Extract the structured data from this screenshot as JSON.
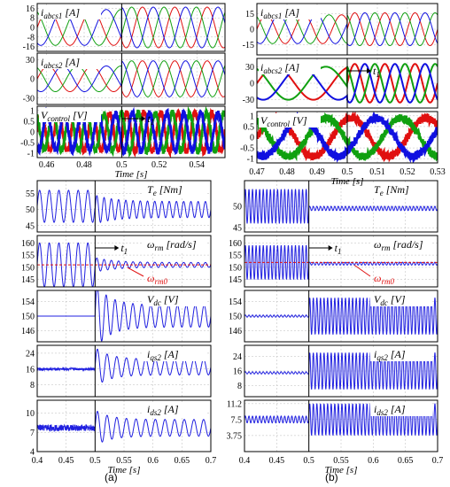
{
  "figure": {
    "caption_a": "(a)",
    "caption_b": "(b)"
  },
  "colors": {
    "red": "#e01010",
    "green": "#10a010",
    "blue": "#1010e0",
    "trace": "#2020e0",
    "annot": "#e01010"
  },
  "chart_data": [
    {
      "id": "a-top",
      "type": "line",
      "xlabel": "Time [s]",
      "xlim": [
        0.455,
        0.555
      ],
      "xticks": [
        "0.46",
        "0.48",
        "0.5",
        "0.52",
        "0.54"
      ],
      "event_x": 0.5,
      "panels": [
        {
          "label": "i_abcs1 [A]",
          "ylim": [
            -20,
            20
          ],
          "yticks": [
            "16",
            "8",
            "0",
            "-8",
            "-16"
          ],
          "series": [
            {
              "color": "red",
              "kind": "sine3",
              "amp": 15,
              "freq": 43,
              "phase": 0,
              "amp2": 17,
              "freq2": 58
            },
            {
              "color": "green",
              "kind": "sine3",
              "amp": 15,
              "freq": 43,
              "phase": 2.094,
              "amp2": 17,
              "freq2": 58
            },
            {
              "color": "blue",
              "kind": "sine3",
              "amp": 15,
              "freq": 43,
              "phase": 4.189,
              "amp2": 17,
              "freq2": 58
            }
          ]
        },
        {
          "label": "i_abcs2 [A]",
          "ylim": [
            -40,
            40
          ],
          "yticks": [
            "30",
            "0",
            "-30"
          ],
          "series": [
            {
              "color": "red",
              "kind": "sine3",
              "amp": 20,
              "freq": 43,
              "phase": 0,
              "amp2": 28,
              "freq2": 58
            },
            {
              "color": "green",
              "kind": "sine3",
              "amp": 20,
              "freq": 43,
              "phase": 2.094,
              "amp2": 28,
              "freq2": 58
            },
            {
              "color": "blue",
              "kind": "sine3",
              "amp": 20,
              "freq": 43,
              "phase": 4.189,
              "amp2": 28,
              "freq2": 58
            }
          ]
        },
        {
          "label": "V_control [V]",
          "ylim": [
            -1.2,
            1.2
          ],
          "yticks": [
            "1",
            "0.5",
            "0",
            "-0.5",
            "-1"
          ],
          "marker": "t1",
          "series": [
            {
              "color": "red",
              "kind": "sine3",
              "amp": 0.85,
              "freq": 110,
              "phase": 0,
              "amp2": 0.9,
              "freq2": 110,
              "noise": 0.15,
              "lw": 3
            },
            {
              "color": "green",
              "kind": "sine3",
              "amp": 0.85,
              "freq": 110,
              "phase": 2.094,
              "amp2": 0.9,
              "freq2": 110,
              "noise": 0.15,
              "lw": 3
            },
            {
              "color": "blue",
              "kind": "sine3",
              "amp": 0.85,
              "freq": 110,
              "phase": 4.189,
              "amp2": 0.9,
              "freq2": 110,
              "noise": 0.15,
              "lw": 3
            }
          ]
        }
      ]
    },
    {
      "id": "b-top",
      "type": "line",
      "xlabel": "Time [s]",
      "xlim": [
        0.47,
        0.53
      ],
      "xticks": [
        "0.47",
        "0.48",
        "0.49",
        "0.5",
        "0.51",
        "0.52",
        "0.53"
      ],
      "event_x": 0.5,
      "panels": [
        {
          "label": "i_abcs1 [A]",
          "ylim": [
            -25,
            25
          ],
          "yticks": [
            "15",
            "0",
            "-15"
          ],
          "series": [
            {
              "color": "red",
              "kind": "sine3",
              "amp": 14,
              "freq": 80,
              "phase": 0,
              "amp2": 16,
              "freq2": 100
            },
            {
              "color": "green",
              "kind": "sine3",
              "amp": 14,
              "freq": 80,
              "phase": 2.094,
              "amp2": 16,
              "freq2": 100
            },
            {
              "color": "blue",
              "kind": "sine3",
              "amp": 14,
              "freq": 80,
              "phase": 4.189,
              "amp2": 16,
              "freq2": 100
            }
          ]
        },
        {
          "label": "i_abcs2 [A]",
          "ylim": [
            -45,
            45
          ],
          "yticks": [
            "30",
            "0",
            "-30"
          ],
          "marker": "t1",
          "series": [
            {
              "color": "red",
              "kind": "sine3",
              "amp": 30,
              "freq": 40,
              "phase": 0,
              "amp2": 35,
              "freq2": 100,
              "lw": 2
            },
            {
              "color": "green",
              "kind": "sine3",
              "amp": 30,
              "freq": 40,
              "phase": 2.094,
              "amp2": 35,
              "freq2": 100,
              "lw": 2
            },
            {
              "color": "blue",
              "kind": "sine3",
              "amp": 30,
              "freq": 40,
              "phase": 4.189,
              "amp2": 35,
              "freq2": 100,
              "lw": 2
            }
          ]
        },
        {
          "label": "V_control [V]",
          "ylim": [
            -1.2,
            1.2
          ],
          "yticks": [
            "1",
            "0.5",
            "0",
            "-0.5",
            "-1"
          ],
          "series": [
            {
              "color": "red",
              "kind": "sine3",
              "amp": 0.9,
              "freq": 40,
              "phase": 0,
              "amp2": 0.9,
              "freq2": 40,
              "noise": 0.18,
              "lw": 3
            },
            {
              "color": "green",
              "kind": "sine3",
              "amp": 0.9,
              "freq": 40,
              "phase": 2.094,
              "amp2": 0.9,
              "freq2": 40,
              "noise": 0.18,
              "lw": 3
            },
            {
              "color": "blue",
              "kind": "sine3",
              "amp": 0.9,
              "freq": 40,
              "phase": 4.189,
              "amp2": 0.9,
              "freq2": 40,
              "noise": 0.18,
              "lw": 3
            }
          ]
        }
      ]
    },
    {
      "id": "a-bottom",
      "type": "line",
      "xlabel": "Time [s]",
      "xlim": [
        0.4,
        0.7
      ],
      "xticks": [
        "0.4",
        "0.45",
        "0.5",
        "0.55",
        "0.6",
        "0.65",
        "0.7"
      ],
      "event_x": 0.5,
      "panels": [
        {
          "label": "T_e [Nm]",
          "ylim": [
            43,
            59
          ],
          "yticks": [
            "55",
            "50",
            "45"
          ],
          "series": [
            {
              "color": "trace",
              "kind": "osc",
              "base1": 51,
              "amp1": 5,
              "freq1": 60,
              "base2": 50,
              "amp2": 2.5,
              "freq2": 80
            }
          ]
        },
        {
          "label": "ω_rm [rad/s]",
          "ylim": [
            142,
            163
          ],
          "yticks": [
            "160",
            "155",
            "150",
            "145"
          ],
          "marker": "t1",
          "ref_label": "ω_rm0",
          "ref_value": 151,
          "series": [
            {
              "color": "trace",
              "kind": "osc",
              "base1": 151,
              "amp1": 9,
              "freq1": 60,
              "base2": 151,
              "amp2": 1,
              "freq2": 80
            }
          ]
        },
        {
          "label": "V_dc [V]",
          "ylim": [
            143,
            157
          ],
          "yticks": [
            "154",
            "150",
            "146"
          ],
          "series": [
            {
              "color": "trace",
              "kind": "step",
              "base1": 150,
              "base2": 150,
              "amp2": 3,
              "freq2": 65,
              "spike": 6
            }
          ]
        },
        {
          "label": "i_qs2 [A]",
          "ylim": [
            2,
            28
          ],
          "yticks": [
            "24",
            "16",
            "8"
          ],
          "series": [
            {
              "color": "trace",
              "kind": "noisy",
              "base1": 16,
              "amp1": 0.6,
              "freq1": 200,
              "base2": 17,
              "amp2": 4,
              "freq2": 60,
              "spike": 6
            }
          ]
        },
        {
          "label": "i_ds2 [A]",
          "ylim": [
            4,
            12
          ],
          "yticks": [
            "10",
            "7",
            "4"
          ],
          "series": [
            {
              "color": "trace",
              "kind": "noisy",
              "base1": 7.7,
              "amp1": 0.5,
              "freq1": 200,
              "base2": 7.7,
              "amp2": 1.3,
              "freq2": 60,
              "spike": 1.5
            }
          ]
        }
      ]
    },
    {
      "id": "b-bottom",
      "type": "line",
      "xlabel": "Time [s]",
      "xlim": [
        0.4,
        0.7
      ],
      "xticks": [
        "0.4",
        "0.45",
        "0.5",
        "0.55",
        "0.6",
        "0.65",
        "0.7"
      ],
      "event_x": 0.5,
      "panels": [
        {
          "label": "T_e [Nm]",
          "ylim": [
            44,
            56
          ],
          "yticks": [
            "50",
            "45"
          ],
          "series": [
            {
              "color": "trace",
              "kind": "dense",
              "base1": 50,
              "amp1": 4,
              "freq1": 180,
              "base2": 49.5,
              "amp2": 0.5,
              "freq2": 180
            }
          ]
        },
        {
          "label": "ω_rm [rad/s]",
          "ylim": [
            142,
            163
          ],
          "yticks": [
            "160",
            "155",
            "150",
            "145"
          ],
          "marker": "t1",
          "ref_label": "ω_rm0",
          "ref_value": 152,
          "series": [
            {
              "color": "trace",
              "kind": "dense",
              "base1": 152,
              "amp1": 7,
              "freq1": 180,
              "base2": 151.5,
              "amp2": 0.6,
              "freq2": 180
            }
          ]
        },
        {
          "label": "V_dc [V]",
          "ylim": [
            143,
            157
          ],
          "yticks": [
            "154",
            "150",
            "146"
          ],
          "series": [
            {
              "color": "trace",
              "kind": "dense",
              "base1": 150,
              "amp1": 0.3,
              "freq1": 180,
              "base2": 150,
              "amp2": 5,
              "freq2": 180
            }
          ]
        },
        {
          "label": "i_qs2 [A]",
          "ylim": [
            2,
            30
          ],
          "yticks": [
            "24",
            "16",
            "8"
          ],
          "series": [
            {
              "color": "trace",
              "kind": "dense",
              "base1": 15,
              "amp1": 0.6,
              "freq1": 180,
              "base2": 16,
              "amp2": 10,
              "freq2": 180
            }
          ]
        },
        {
          "label": "i_ds2 [A]",
          "ylim": [
            0,
            12
          ],
          "yticks": [
            "11.2",
            "7.5",
            "3.75"
          ],
          "series": [
            {
              "color": "trace",
              "kind": "dense",
              "base1": 7.5,
              "amp1": 0.8,
              "freq1": 180,
              "base2": 7.5,
              "amp2": 3.7,
              "freq2": 180
            }
          ]
        }
      ]
    }
  ]
}
